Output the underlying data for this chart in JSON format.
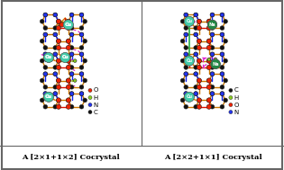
{
  "title_left": "A [2×1+1×2] Cocrystal",
  "title_right": "A [2×2+1×1] Cocrystal",
  "figsize": [
    3.15,
    1.89
  ],
  "dpi": 100,
  "panel_bg": "#ffffff",
  "caption_bg": "#d8d8d8",
  "border_color": "#666666",
  "atom_colors": {
    "C": "#111111",
    "H": "#88cc22",
    "O": "#ee2200",
    "N": "#2233ee",
    "Cu": "#44ccaa",
    "Na": "#228844",
    "bond_orange": "#cc7700",
    "bond_red": "#dd1100",
    "bond_blue": "#1122ee",
    "bond_pink": "#dd22cc",
    "bond_yellow": "#aacc00",
    "bond_green": "#22aa44"
  },
  "legend_left": [
    {
      "label": "O",
      "color": "#ee2200"
    },
    {
      "label": "H",
      "color": "#88cc22"
    },
    {
      "label": "N",
      "color": "#2233ee"
    },
    {
      "label": "C",
      "color": "#111111"
    }
  ],
  "legend_right": [
    {
      "label": "C",
      "color": "#111111"
    },
    {
      "label": "H",
      "color": "#88cc22"
    },
    {
      "label": "O",
      "color": "#ee2200"
    },
    {
      "label": "N",
      "color": "#2233ee"
    }
  ]
}
